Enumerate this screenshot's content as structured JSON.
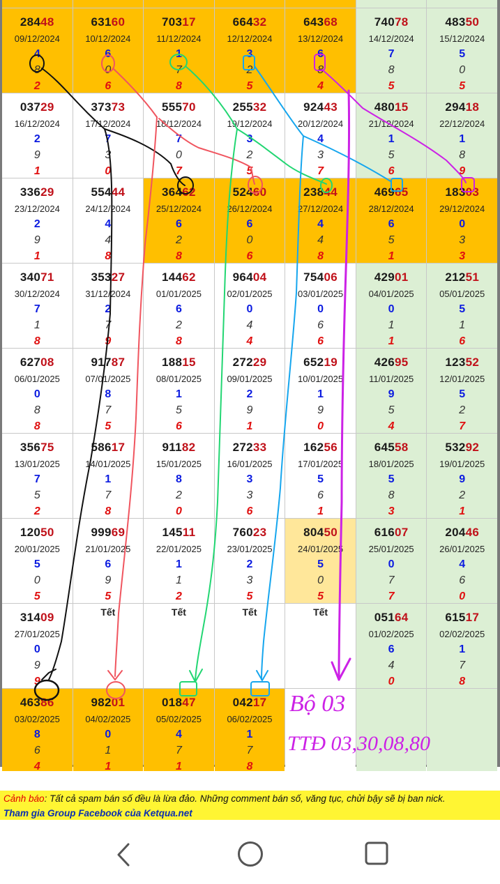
{
  "grid": {
    "rows": [
      [
        {
          "head": "284",
          "tail": "48",
          "date": "09/12/2024",
          "l1": "4",
          "l2": "8",
          "l3": "2",
          "bg": "orange"
        },
        {
          "head": "631",
          "tail": "60",
          "date": "10/12/2024",
          "l1": "6",
          "l2": "0",
          "l3": "6",
          "bg": "orange"
        },
        {
          "head": "703",
          "tail": "17",
          "date": "11/12/2024",
          "l1": "1",
          "l2": "7",
          "l3": "8",
          "bg": "orange"
        },
        {
          "head": "664",
          "tail": "32",
          "date": "12/12/2024",
          "l1": "3",
          "l2": "2",
          "l3": "5",
          "bg": "orange"
        },
        {
          "head": "643",
          "tail": "68",
          "date": "13/12/2024",
          "l1": "6",
          "l2": "8",
          "l3": "4",
          "bg": "orange"
        },
        {
          "head": "740",
          "tail": "78",
          "date": "14/12/2024",
          "l1": "7",
          "l2": "8",
          "l3": "5",
          "bg": "green"
        },
        {
          "head": "483",
          "tail": "50",
          "date": "15/12/2024",
          "l1": "5",
          "l2": "0",
          "l3": "5",
          "bg": "green"
        }
      ],
      [
        {
          "head": "037",
          "tail": "29",
          "date": "16/12/2024",
          "l1": "2",
          "l2": "9",
          "l3": "1",
          "bg": "white"
        },
        {
          "head": "373",
          "tail": "73",
          "date": "17/12/2024",
          "l1": "7",
          "l2": "3",
          "l3": "0",
          "bg": "white"
        },
        {
          "head": "555",
          "tail": "70",
          "date": "18/12/2024",
          "l1": "7",
          "l2": "0",
          "l3": "7",
          "bg": "white"
        },
        {
          "head": "255",
          "tail": "32",
          "date": "19/12/2024",
          "l1": "3",
          "l2": "2",
          "l3": "5",
          "bg": "white"
        },
        {
          "head": "924",
          "tail": "43",
          "date": "20/12/2024",
          "l1": "4",
          "l2": "3",
          "l3": "7",
          "bg": "white"
        },
        {
          "head": "480",
          "tail": "15",
          "date": "21/12/2024",
          "l1": "1",
          "l2": "5",
          "l3": "6",
          "bg": "green"
        },
        {
          "head": "294",
          "tail": "18",
          "date": "22/12/2024",
          "l1": "1",
          "l2": "8",
          "l3": "9",
          "bg": "green"
        }
      ],
      [
        {
          "head": "336",
          "tail": "29",
          "date": "23/12/2024",
          "l1": "2",
          "l2": "9",
          "l3": "1",
          "bg": "white"
        },
        {
          "head": "554",
          "tail": "44",
          "date": "24/12/2024",
          "l1": "4",
          "l2": "4",
          "l3": "8",
          "bg": "white"
        },
        {
          "head": "364",
          "tail": "62",
          "date": "25/12/2024",
          "l1": "6",
          "l2": "2",
          "l3": "8",
          "bg": "orange"
        },
        {
          "head": "524",
          "tail": "60",
          "date": "26/12/2024",
          "l1": "6",
          "l2": "0",
          "l3": "6",
          "bg": "orange"
        },
        {
          "head": "238",
          "tail": "44",
          "date": "27/12/2024",
          "l1": "4",
          "l2": "4",
          "l3": "8",
          "bg": "orange"
        },
        {
          "head": "469",
          "tail": "65",
          "date": "28/12/2024",
          "l1": "6",
          "l2": "5",
          "l3": "1",
          "bg": "orange"
        },
        {
          "head": "183",
          "tail": "03",
          "date": "29/12/2024",
          "l1": "0",
          "l2": "3",
          "l3": "3",
          "bg": "orange"
        }
      ],
      [
        {
          "head": "340",
          "tail": "71",
          "date": "30/12/2024",
          "l1": "7",
          "l2": "1",
          "l3": "8",
          "bg": "white"
        },
        {
          "head": "353",
          "tail": "27",
          "date": "31/12/2024",
          "l1": "2",
          "l2": "7",
          "l3": "9",
          "bg": "white"
        },
        {
          "head": "144",
          "tail": "62",
          "date": "01/01/2025",
          "l1": "6",
          "l2": "2",
          "l3": "8",
          "bg": "white"
        },
        {
          "head": "964",
          "tail": "04",
          "date": "02/01/2025",
          "l1": "0",
          "l2": "4",
          "l3": "4",
          "bg": "white"
        },
        {
          "head": "754",
          "tail": "06",
          "date": "03/01/2025",
          "l1": "0",
          "l2": "6",
          "l3": "6",
          "bg": "white"
        },
        {
          "head": "429",
          "tail": "01",
          "date": "04/01/2025",
          "l1": "0",
          "l2": "1",
          "l3": "1",
          "bg": "green"
        },
        {
          "head": "212",
          "tail": "51",
          "date": "05/01/2025",
          "l1": "5",
          "l2": "1",
          "l3": "6",
          "bg": "green"
        }
      ],
      [
        {
          "head": "627",
          "tail": "08",
          "date": "06/01/2025",
          "l1": "0",
          "l2": "8",
          "l3": "8",
          "bg": "white"
        },
        {
          "head": "917",
          "tail": "87",
          "date": "07/01/2025",
          "l1": "8",
          "l2": "7",
          "l3": "5",
          "bg": "white"
        },
        {
          "head": "188",
          "tail": "15",
          "date": "08/01/2025",
          "l1": "1",
          "l2": "5",
          "l3": "6",
          "bg": "white"
        },
        {
          "head": "272",
          "tail": "29",
          "date": "09/01/2025",
          "l1": "2",
          "l2": "9",
          "l3": "1",
          "bg": "white"
        },
        {
          "head": "652",
          "tail": "19",
          "date": "10/01/2025",
          "l1": "1",
          "l2": "9",
          "l3": "0",
          "bg": "white"
        },
        {
          "head": "426",
          "tail": "95",
          "date": "11/01/2025",
          "l1": "9",
          "l2": "5",
          "l3": "4",
          "bg": "green"
        },
        {
          "head": "123",
          "tail": "52",
          "date": "12/01/2025",
          "l1": "5",
          "l2": "2",
          "l3": "7",
          "bg": "green"
        }
      ],
      [
        {
          "head": "356",
          "tail": "75",
          "date": "13/01/2025",
          "l1": "7",
          "l2": "5",
          "l3": "2",
          "bg": "white"
        },
        {
          "head": "586",
          "tail": "17",
          "date": "14/01/2025",
          "l1": "1",
          "l2": "7",
          "l3": "8",
          "bg": "white"
        },
        {
          "head": "911",
          "tail": "82",
          "date": "15/01/2025",
          "l1": "8",
          "l2": "2",
          "l3": "0",
          "bg": "white"
        },
        {
          "head": "272",
          "tail": "33",
          "date": "16/01/2025",
          "l1": "3",
          "l2": "3",
          "l3": "6",
          "bg": "white"
        },
        {
          "head": "162",
          "tail": "56",
          "date": "17/01/2025",
          "l1": "5",
          "l2": "6",
          "l3": "1",
          "bg": "white"
        },
        {
          "head": "645",
          "tail": "58",
          "date": "18/01/2025",
          "l1": "5",
          "l2": "8",
          "l3": "3",
          "bg": "green"
        },
        {
          "head": "532",
          "tail": "92",
          "date": "19/01/2025",
          "l1": "9",
          "l2": "2",
          "l3": "1",
          "bg": "green"
        }
      ],
      [
        {
          "head": "120",
          "tail": "50",
          "date": "20/01/2025",
          "l1": "5",
          "l2": "0",
          "l3": "5",
          "bg": "white"
        },
        {
          "head": "999",
          "tail": "69",
          "date": "21/01/2025",
          "l1": "6",
          "l2": "9",
          "l3": "5",
          "bg": "white"
        },
        {
          "head": "145",
          "tail": "11",
          "date": "22/01/2025",
          "l1": "1",
          "l2": "1",
          "l3": "2",
          "bg": "white"
        },
        {
          "head": "760",
          "tail": "23",
          "date": "23/01/2025",
          "l1": "2",
          "l2": "3",
          "l3": "5",
          "bg": "white"
        },
        {
          "head": "804",
          "tail": "50",
          "date": "24/01/2025",
          "l1": "5",
          "l2": "0",
          "l3": "5",
          "bg": "light"
        },
        {
          "head": "616",
          "tail": "07",
          "date": "25/01/2025",
          "l1": "0",
          "l2": "7",
          "l3": "7",
          "bg": "green"
        },
        {
          "head": "204",
          "tail": "46",
          "date": "26/01/2025",
          "l1": "4",
          "l2": "6",
          "l3": "0",
          "bg": "green"
        }
      ],
      [
        {
          "head": "314",
          "tail": "09",
          "date": "27/01/2025",
          "l1": "0",
          "l2": "9",
          "l3": "9",
          "bg": "white"
        },
        {
          "tet": "Tết",
          "bg": "white"
        },
        {
          "tet": "Tết",
          "bg": "white"
        },
        {
          "tet": "Tết",
          "bg": "white"
        },
        {
          "tet": "Tết",
          "bg": "white"
        },
        {
          "head": "051",
          "tail": "64",
          "date": "01/02/2025",
          "l1": "6",
          "l2": "4",
          "l3": "0",
          "bg": "green"
        },
        {
          "head": "615",
          "tail": "17",
          "date": "02/02/2025",
          "l1": "1",
          "l2": "7",
          "l3": "8",
          "bg": "green"
        }
      ],
      [
        {
          "head": "463",
          "tail": "86",
          "date": "03/02/2025",
          "l1": "8",
          "l2": "6",
          "l3": "4",
          "bg": "orange"
        },
        {
          "head": "982",
          "tail": "01",
          "date": "04/02/2025",
          "l1": "0",
          "l2": "1",
          "l3": "1",
          "bg": "orange"
        },
        {
          "head": "018",
          "tail": "47",
          "date": "05/02/2025",
          "l1": "4",
          "l2": "7",
          "l3": "1",
          "bg": "orange"
        },
        {
          "head": "042",
          "tail": "17",
          "date": "06/02/2025",
          "l1": "1",
          "l2": "7",
          "l3": "8",
          "bg": "orange"
        },
        {
          "empty": true,
          "bg": "white"
        },
        {
          "empty": true,
          "bg": "green"
        },
        {
          "empty": true,
          "bg": "green"
        }
      ]
    ]
  },
  "annotation": {
    "bo_label": "Bộ 03",
    "ttd_label": "TTĐ 03,30,08,80",
    "colors": {
      "black": "#111111",
      "red": "#f0555f",
      "green": "#22d672",
      "blue": "#16a6ee",
      "magenta": "#cc22e6"
    }
  },
  "notice": {
    "warning_label": "Cảnh báo",
    "warning_text": ": Tất cả spam bán số đều là lừa đảo. Những comment bán số, văng tục, chửi bậy sẽ bị ban nick.",
    "facebook_link": "Tham gia Group Facebook của Ketqua.net"
  },
  "navbar": {
    "icons": [
      "back-icon",
      "home-icon",
      "recents-icon"
    ],
    "color": "#555555"
  }
}
